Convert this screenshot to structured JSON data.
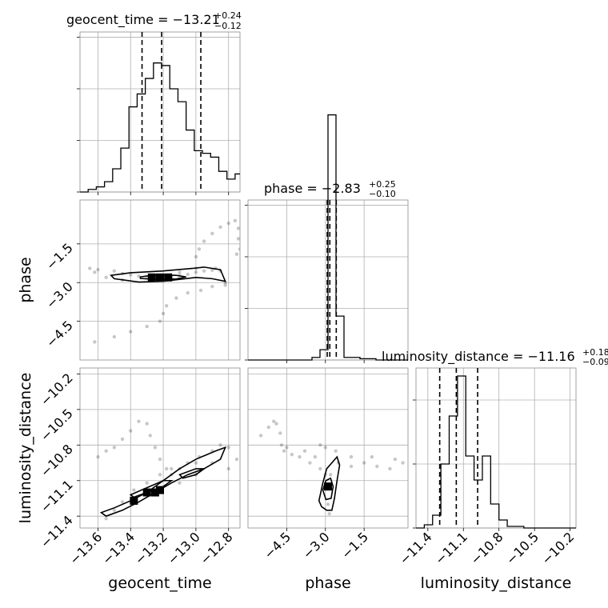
{
  "chart_data": {
    "type": "corner",
    "parameters": [
      {
        "name": "geocent_time",
        "xlabel": "geocent_time",
        "title_prefix": "geocent_time = ",
        "median": "−13.21",
        "plus": "+0.24",
        "minus": "−0.12",
        "range": [
          -13.71,
          -12.73
        ],
        "ticks": [
          -13.6,
          -13.4,
          -13.2,
          -13.0,
          -12.8
        ],
        "tick_labels": [
          "−13.6",
          "−13.4",
          "−13.2",
          "−13.0",
          "−12.8"
        ],
        "quantiles": [
          -13.33,
          -13.21,
          -12.97
        ],
        "hist_edges": [
          -13.71,
          -13.66,
          -13.61,
          -13.56,
          -13.51,
          -13.46,
          -13.41,
          -13.36,
          -13.31,
          -13.26,
          -13.21,
          -13.16,
          -13.11,
          -13.06,
          -13.01,
          -12.96,
          -12.91,
          -12.86,
          -12.81,
          -12.76,
          -12.73
        ],
        "hist_counts": [
          0.0,
          1.0,
          2.0,
          4.0,
          9.0,
          17.0,
          33.0,
          38.0,
          44.0,
          50.0,
          49.0,
          40.0,
          35.0,
          24.0,
          16.0,
          15.0,
          13.5,
          8.0,
          5.0,
          7.0
        ],
        "hist_yticks": [
          0,
          20,
          40,
          60
        ],
        "hist_ymax": 62
      },
      {
        "name": "phase",
        "xlabel": "phase",
        "ylabel": "phase",
        "title_prefix": "phase = ",
        "median": "−2.83",
        "plus": "+0.25",
        "minus": "−0.10",
        "range": [
          -6.0,
          0.2
        ],
        "ticks": [
          -4.5,
          -3.0,
          -1.5
        ],
        "tick_labels": [
          "−4.5",
          "−3.0",
          "−1.5"
        ],
        "quantiles": [
          -2.93,
          -2.83,
          -2.58
        ],
        "hist_edges": [
          -6.0,
          -5.69,
          -5.38,
          -5.07,
          -4.76,
          -4.45,
          -4.14,
          -3.83,
          -3.52,
          -3.21,
          -2.9,
          -2.59,
          -2.28,
          -1.97,
          -1.66,
          -1.35,
          -1.04,
          -0.73,
          -0.42,
          -0.11,
          0.2
        ],
        "hist_counts": [
          0,
          0,
          0,
          0,
          0,
          0,
          0,
          0,
          1,
          4,
          95,
          17,
          1,
          1,
          0.5,
          0.5,
          0,
          0,
          0,
          0
        ],
        "hist_yticks": [
          0,
          20,
          40,
          60
        ],
        "hist_ymax": 62
      },
      {
        "name": "luminosity_distance",
        "xlabel": "luminosity_distance",
        "ylabel": "luminosity_distance",
        "title_prefix": "luminosity_distance = ",
        "median": "−11.16",
        "plus": "+0.18",
        "minus": "−0.09",
        "range": [
          -11.5,
          -10.15
        ],
        "ticks": [
          -11.4,
          -11.1,
          -10.8,
          -10.5,
          -10.2
        ],
        "tick_labels": [
          "−11.4",
          "−11.1",
          "−10.8",
          "−10.5",
          "−10.2"
        ],
        "quantiles": [
          -11.3,
          -11.16,
          -10.98
        ],
        "hist_edges": [
          -11.5,
          -11.43,
          -11.36,
          -11.29,
          -11.22,
          -11.15,
          -11.08,
          -11.01,
          -10.94,
          -10.87,
          -10.8,
          -10.73,
          -10.66,
          -10.59,
          -10.52,
          -10.45,
          -10.38,
          -10.31,
          -10.24,
          -10.15
        ],
        "hist_counts": [
          0,
          2,
          8,
          40,
          70,
          95,
          45,
          30,
          45,
          15,
          5,
          1,
          1,
          0,
          0,
          0,
          0,
          0,
          0
        ],
        "hist_yticks": [
          0,
          40,
          80
        ],
        "hist_ymax": 100
      }
    ],
    "pairs": [
      {
        "x": "geocent_time",
        "y": "phase",
        "scatter": [
          [
            -13.5,
            -2.55
          ],
          [
            -13.45,
            -2.65
          ],
          [
            -13.4,
            -2.7
          ],
          [
            -13.35,
            -2.75
          ],
          [
            -13.3,
            -2.78
          ],
          [
            -13.25,
            -2.8
          ],
          [
            -13.2,
            -2.8
          ],
          [
            -13.15,
            -2.78
          ],
          [
            -13.1,
            -2.72
          ],
          [
            -13.05,
            -2.68
          ],
          [
            -13.0,
            -2.6
          ],
          [
            -12.95,
            -2.55
          ],
          [
            -12.9,
            -2.52
          ],
          [
            -12.85,
            -2.55
          ],
          [
            -12.82,
            -3.0
          ],
          [
            -12.82,
            -3.1
          ],
          [
            -13.6,
            -2.5
          ],
          [
            -13.65,
            -2.45
          ],
          [
            -13.62,
            -2.6
          ],
          [
            -13.2,
            -4.2
          ],
          [
            -13.18,
            -3.9
          ],
          [
            -13.12,
            -3.6
          ],
          [
            -13.05,
            -3.4
          ],
          [
            -12.97,
            -3.3
          ],
          [
            -12.9,
            -3.15
          ],
          [
            -13.22,
            -4.5
          ],
          [
            -13.3,
            -4.7
          ],
          [
            -13.4,
            -4.9
          ],
          [
            -13.5,
            -5.1
          ],
          [
            -13.62,
            -5.3
          ],
          [
            -13.0,
            -2.0
          ],
          [
            -12.98,
            -1.7
          ],
          [
            -12.95,
            -1.4
          ],
          [
            -12.9,
            -1.1
          ],
          [
            -12.85,
            -0.85
          ],
          [
            -12.8,
            -0.7
          ],
          [
            -12.76,
            -0.6
          ],
          [
            -12.74,
            -0.9
          ],
          [
            -12.74,
            -1.3
          ],
          [
            -12.75,
            -1.9
          ],
          [
            -12.73,
            -1.7
          ],
          [
            -13.55,
            -2.8
          ],
          [
            -13.45,
            -2.9
          ],
          [
            -13.1,
            -2.6
          ],
          [
            -13.0,
            -2.45
          ],
          [
            -12.88,
            -2.45
          ]
        ],
        "levels": [
          [
            [
              -13.52,
              -2.72
            ],
            [
              -13.4,
              -2.62
            ],
            [
              -13.2,
              -2.55
            ],
            [
              -13.02,
              -2.45
            ],
            [
              -12.95,
              -2.4
            ],
            [
              -12.85,
              -2.5
            ],
            [
              -12.82,
              -2.95
            ],
            [
              -12.9,
              -2.85
            ],
            [
              -13.0,
              -2.8
            ],
            [
              -13.2,
              -2.95
            ],
            [
              -13.35,
              -2.98
            ],
            [
              -13.5,
              -2.85
            ]
          ],
          [
            [
              -13.34,
              -2.78
            ],
            [
              -13.25,
              -2.7
            ],
            [
              -13.12,
              -2.72
            ],
            [
              -13.06,
              -2.78
            ],
            [
              -13.12,
              -2.86
            ],
            [
              -13.25,
              -2.88
            ],
            [
              -13.34,
              -2.84
            ]
          ]
        ],
        "dense": [
          [
            -13.27,
            -2.8
          ],
          [
            -13.22,
            -2.8
          ],
          [
            -13.17,
            -2.8
          ]
        ]
      },
      {
        "x": "geocent_time",
        "y": "luminosity_distance",
        "scatter": [
          [
            -13.55,
            -11.42
          ],
          [
            -13.5,
            -11.35
          ],
          [
            -13.45,
            -11.28
          ],
          [
            -13.38,
            -11.18
          ],
          [
            -13.3,
            -11.12
          ],
          [
            -13.22,
            -11.05
          ],
          [
            -13.15,
            -11.0
          ],
          [
            -13.05,
            -10.95
          ],
          [
            -12.98,
            -10.9
          ],
          [
            -12.9,
            -10.85
          ],
          [
            -12.85,
            -10.8
          ],
          [
            -12.8,
            -10.82
          ],
          [
            -12.75,
            -10.92
          ],
          [
            -13.6,
            -10.9
          ],
          [
            -13.55,
            -10.85
          ],
          [
            -13.5,
            -10.82
          ],
          [
            -13.45,
            -10.75
          ],
          [
            -13.4,
            -10.68
          ],
          [
            -13.35,
            -10.6
          ],
          [
            -13.3,
            -10.62
          ],
          [
            -13.28,
            -10.72
          ],
          [
            -13.25,
            -10.82
          ],
          [
            -13.22,
            -10.92
          ],
          [
            -13.18,
            -11.0
          ],
          [
            -13.15,
            -11.05
          ],
          [
            -13.1,
            -11.0
          ],
          [
            -13.0,
            -10.95
          ],
          [
            -12.9,
            -10.95
          ],
          [
            -12.8,
            -11.0
          ],
          [
            -13.0,
            -11.05
          ],
          [
            -13.1,
            -11.12
          ]
        ],
        "levels": [
          [
            [
              -13.58,
              -11.37
            ],
            [
              -13.5,
              -11.33
            ],
            [
              -13.4,
              -11.27
            ],
            [
              -13.3,
              -11.2
            ],
            [
              -13.2,
              -11.1
            ],
            [
              -13.1,
              -11.0
            ],
            [
              -13.0,
              -10.92
            ],
            [
              -12.88,
              -10.85
            ],
            [
              -12.82,
              -10.82
            ],
            [
              -12.85,
              -10.92
            ],
            [
              -12.95,
              -11.0
            ],
            [
              -13.05,
              -11.05
            ],
            [
              -13.15,
              -11.12
            ],
            [
              -13.25,
              -11.2
            ],
            [
              -13.35,
              -11.28
            ],
            [
              -13.45,
              -11.35
            ],
            [
              -13.55,
              -11.4
            ]
          ],
          [
            [
              -13.4,
              -11.22
            ],
            [
              -13.3,
              -11.16
            ],
            [
              -13.2,
              -11.1
            ],
            [
              -13.15,
              -11.1
            ],
            [
              -13.2,
              -11.15
            ],
            [
              -13.3,
              -11.2
            ],
            [
              -13.38,
              -11.24
            ]
          ],
          [
            [
              -13.1,
              -11.05
            ],
            [
              -13.0,
              -11.0
            ],
            [
              -12.95,
              -11.0
            ],
            [
              -13.0,
              -11.05
            ],
            [
              -13.08,
              -11.08
            ]
          ]
        ],
        "dense": [
          [
            -13.38,
            -11.27
          ],
          [
            -13.3,
            -11.2
          ],
          [
            -13.25,
            -11.2
          ],
          [
            -13.22,
            -11.18
          ]
        ]
      },
      {
        "x": "phase",
        "y": "luminosity_distance",
        "scatter": [
          [
            -5.5,
            -10.72
          ],
          [
            -5.2,
            -10.65
          ],
          [
            -5.0,
            -10.6
          ],
          [
            -4.9,
            -10.62
          ],
          [
            -4.75,
            -10.7
          ],
          [
            -4.7,
            -10.8
          ],
          [
            -4.6,
            -10.85
          ],
          [
            -4.3,
            -10.88
          ],
          [
            -4.0,
            -10.9
          ],
          [
            -3.6,
            -10.95
          ],
          [
            -3.2,
            -11.0
          ],
          [
            -3.0,
            -11.05
          ],
          [
            -2.5,
            -10.95
          ],
          [
            -2.0,
            -10.98
          ],
          [
            -1.5,
            -10.95
          ],
          [
            -1.0,
            -10.98
          ],
          [
            -0.5,
            -11.0
          ],
          [
            0.0,
            -10.95
          ],
          [
            -2.8,
            -11.05
          ],
          [
            -3.4,
            -10.9
          ],
          [
            -2.9,
            -11.3
          ],
          [
            -2.85,
            -11.38
          ],
          [
            -3.2,
            -10.8
          ],
          [
            -3.0,
            -10.82
          ],
          [
            -2.6,
            -10.85
          ],
          [
            -2.0,
            -10.9
          ],
          [
            -1.2,
            -10.9
          ],
          [
            -0.3,
            -10.92
          ],
          [
            -4.5,
            -10.82
          ],
          [
            -3.8,
            -10.85
          ]
        ],
        "levels": [
          [
            [
              -3.25,
              -11.27
            ],
            [
              -3.1,
              -11.12
            ],
            [
              -2.95,
              -11.0
            ],
            [
              -2.75,
              -10.95
            ],
            [
              -2.55,
              -10.9
            ],
            [
              -2.45,
              -10.97
            ],
            [
              -2.55,
              -11.1
            ],
            [
              -2.65,
              -11.25
            ],
            [
              -2.75,
              -11.35
            ],
            [
              -2.95,
              -11.35
            ],
            [
              -3.15,
              -11.32
            ]
          ],
          [
            [
              -3.1,
              -11.18
            ],
            [
              -2.98,
              -11.1
            ],
            [
              -2.8,
              -11.08
            ],
            [
              -2.7,
              -11.15
            ],
            [
              -2.78,
              -11.25
            ],
            [
              -2.98,
              -11.26
            ]
          ]
        ],
        "dense": [
          [
            -2.9,
            -11.15
          ]
        ]
      }
    ]
  }
}
